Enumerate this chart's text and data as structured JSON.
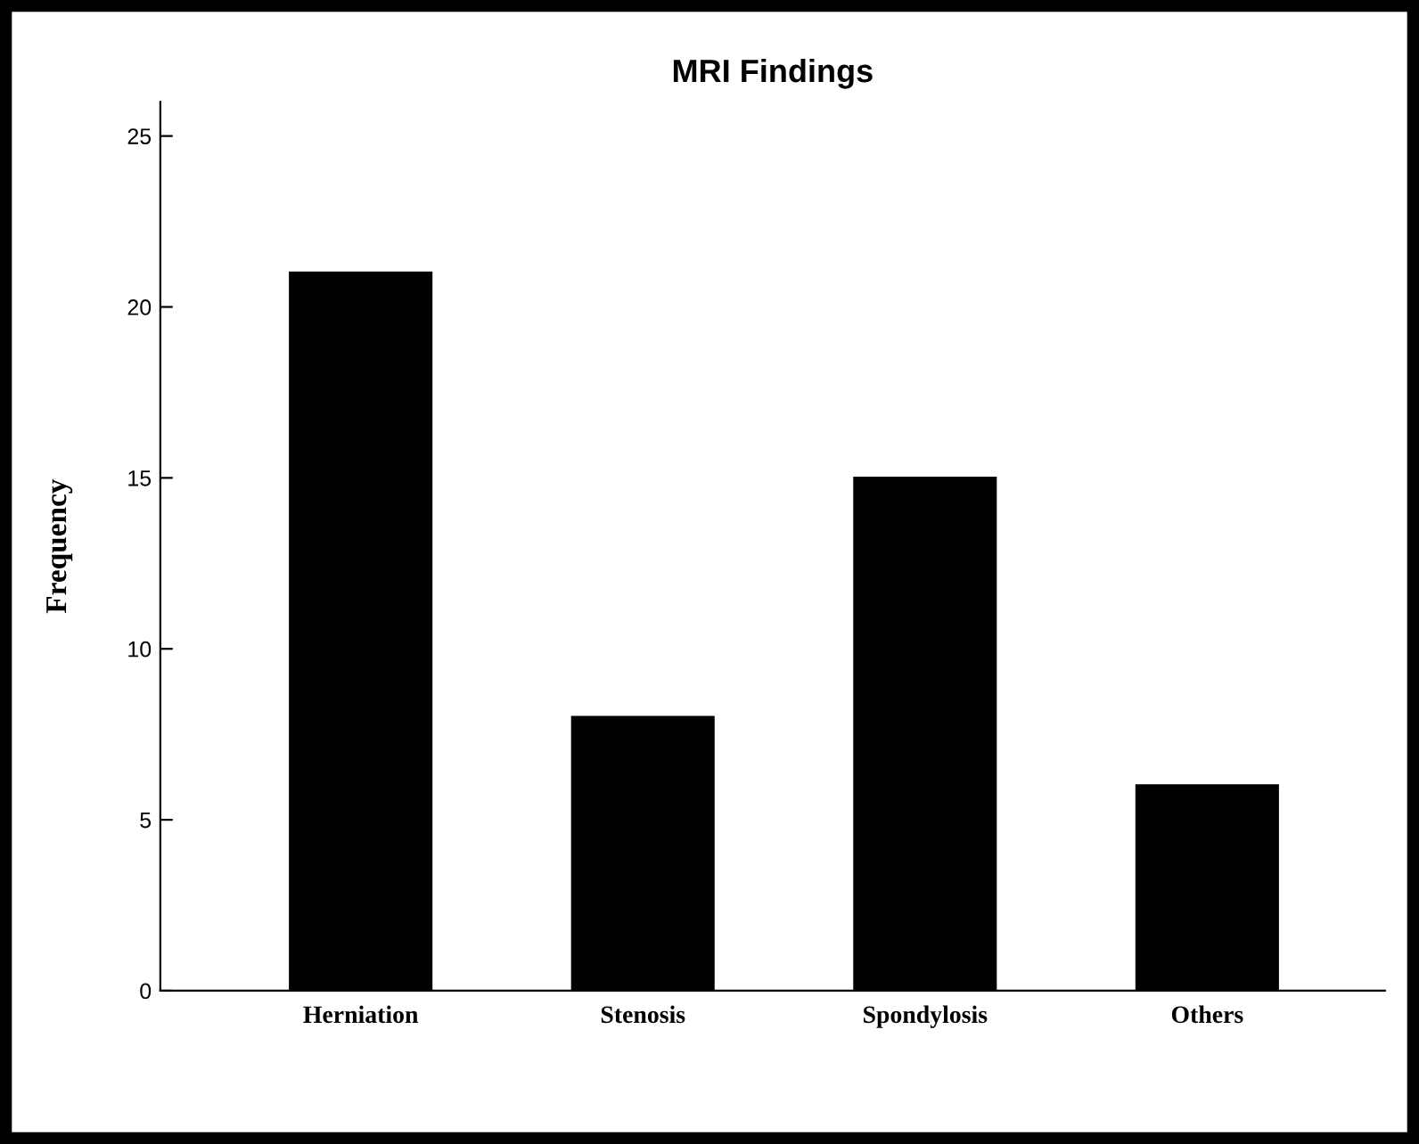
{
  "chart_data": {
    "type": "bar",
    "title": "MRI Findings",
    "ylabel": "Frequency",
    "categories": [
      "Herniation",
      "Stenosis",
      "Spondylosis",
      "Others"
    ],
    "values": [
      21,
      8,
      15,
      6
    ],
    "color": "#000000",
    "ylim": [
      0,
      26
    ],
    "yticks": [
      0,
      5,
      10,
      15,
      20,
      25
    ],
    "grid": false,
    "legend": false
  }
}
